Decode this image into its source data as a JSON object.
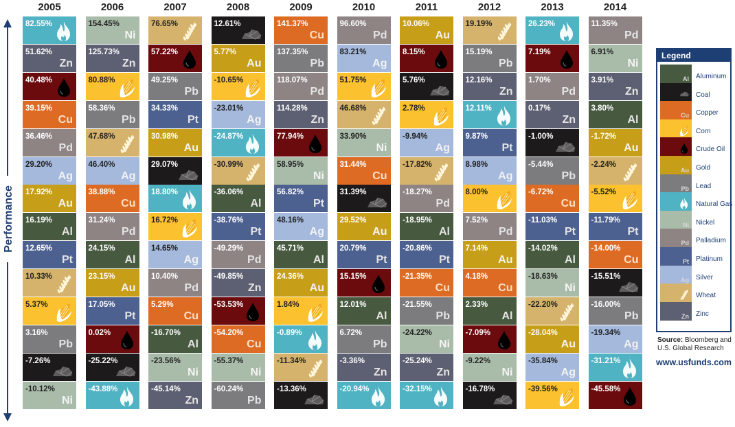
{
  "y_axis_label": "Performance",
  "legend": {
    "title": "Legend",
    "items": [
      {
        "name": "Aluminum",
        "sym": "Al"
      },
      {
        "name": "Coal",
        "sym": ""
      },
      {
        "name": "Copper",
        "sym": "Cu"
      },
      {
        "name": "Corn",
        "sym": ""
      },
      {
        "name": "Crude Oil",
        "sym": ""
      },
      {
        "name": "Gold",
        "sym": "Au"
      },
      {
        "name": "Lead",
        "sym": "Pb"
      },
      {
        "name": "Natural Gas",
        "sym": ""
      },
      {
        "name": "Nickel",
        "sym": "Ni"
      },
      {
        "name": "Palladium",
        "sym": "Pd"
      },
      {
        "name": "Platinum",
        "sym": "Pt"
      },
      {
        "name": "Silver",
        "sym": "Ag"
      },
      {
        "name": "Wheat",
        "sym": ""
      },
      {
        "name": "Zinc",
        "sym": "Zn"
      }
    ]
  },
  "source": {
    "label": "Source:",
    "text": "Bloomberg and U.S. Global Research"
  },
  "website": "www.usfunds.com",
  "colors": {
    "Al": "#475a3f",
    "Coal": "#1c1a1b",
    "Cu": "#de6b24",
    "Corn": "#fcc12e",
    "Oil": "#6b0b0d",
    "Au": "#c79e17",
    "Pb": "#7c7c7e",
    "Gas": "#4fb3c3",
    "Ni": "#a9bca9",
    "Pd": "#8e8484",
    "Pt": "#4d6191",
    "Ag": "#a4b9dc",
    "Wheat": "#d6b36c",
    "Zn": "#5d6072",
    "axis": "#1e3f73"
  },
  "chart_data": {
    "type": "table",
    "title": "",
    "ylabel": "Performance",
    "years": [
      "2005",
      "2006",
      "2007",
      "2008",
      "2009",
      "2010",
      "2011",
      "2012",
      "2013",
      "2014"
    ],
    "columns": [
      [
        [
          "82.55%",
          "Gas"
        ],
        [
          "51.62%",
          "Zn"
        ],
        [
          "40.48%",
          "Oil"
        ],
        [
          "39.15%",
          "Cu"
        ],
        [
          "36.46%",
          "Pd"
        ],
        [
          "29.20%",
          "Ag"
        ],
        [
          "17.92%",
          "Au"
        ],
        [
          "16.19%",
          "Al"
        ],
        [
          "12.65%",
          "Pt"
        ],
        [
          "10.33%",
          "Wheat"
        ],
        [
          "5.37%",
          "Corn"
        ],
        [
          "3.16%",
          "Pb"
        ],
        [
          "-7.26%",
          "Coal"
        ],
        [
          "-10.12%",
          "Ni"
        ]
      ],
      [
        [
          "154.45%",
          "Ni"
        ],
        [
          "125.73%",
          "Zn"
        ],
        [
          "80.88%",
          "Corn"
        ],
        [
          "58.36%",
          "Pb"
        ],
        [
          "47.68%",
          "Wheat"
        ],
        [
          "46.40%",
          "Ag"
        ],
        [
          "38.88%",
          "Cu"
        ],
        [
          "31.24%",
          "Pd"
        ],
        [
          "24.15%",
          "Al"
        ],
        [
          "23.15%",
          "Au"
        ],
        [
          "17.05%",
          "Pt"
        ],
        [
          "0.02%",
          "Oil"
        ],
        [
          "-25.22%",
          "Coal"
        ],
        [
          "-43.88%",
          "Gas"
        ]
      ],
      [
        [
          "76.65%",
          "Wheat"
        ],
        [
          "57.22%",
          "Oil"
        ],
        [
          "49.25%",
          "Pb"
        ],
        [
          "34.33%",
          "Pt"
        ],
        [
          "30.98%",
          "Au"
        ],
        [
          "29.07%",
          "Coal"
        ],
        [
          "18.80%",
          "Gas"
        ],
        [
          "16.72%",
          "Corn"
        ],
        [
          "14.65%",
          "Ag"
        ],
        [
          "10.40%",
          "Pd"
        ],
        [
          "5.29%",
          "Cu"
        ],
        [
          "-16.70%",
          "Al"
        ],
        [
          "-23.56%",
          "Ni"
        ],
        [
          "-45.14%",
          "Zn"
        ]
      ],
      [
        [
          "12.61%",
          "Coal"
        ],
        [
          "5.77%",
          "Au"
        ],
        [
          "-10.65%",
          "Corn"
        ],
        [
          "-23.01%",
          "Ag"
        ],
        [
          "-24.87%",
          "Gas"
        ],
        [
          "-30.99%",
          "Wheat"
        ],
        [
          "-36.06%",
          "Al"
        ],
        [
          "-38.76%",
          "Pt"
        ],
        [
          "-49.29%",
          "Pd"
        ],
        [
          "-49.85%",
          "Zn"
        ],
        [
          "-53.53%",
          "Oil"
        ],
        [
          "-54.20%",
          "Cu"
        ],
        [
          "-55.37%",
          "Ni"
        ],
        [
          "-60.24%",
          "Pb"
        ]
      ],
      [
        [
          "141.37%",
          "Cu"
        ],
        [
          "137.35%",
          "Pb"
        ],
        [
          "118.07%",
          "Pd"
        ],
        [
          "114.28%",
          "Zn"
        ],
        [
          "77.94%",
          "Oil"
        ],
        [
          "58.95%",
          "Ni"
        ],
        [
          "56.82%",
          "Pt"
        ],
        [
          "48.16%",
          "Ag"
        ],
        [
          "45.71%",
          "Al"
        ],
        [
          "24.36%",
          "Au"
        ],
        [
          "1.84%",
          "Corn"
        ],
        [
          "-0.89%",
          "Gas"
        ],
        [
          "-11.34%",
          "Wheat"
        ],
        [
          "-13.36%",
          "Coal"
        ]
      ],
      [
        [
          "96.60%",
          "Pd"
        ],
        [
          "83.21%",
          "Ag"
        ],
        [
          "51.75%",
          "Corn"
        ],
        [
          "46.68%",
          "Wheat"
        ],
        [
          "33.90%",
          "Ni"
        ],
        [
          "31.44%",
          "Cu"
        ],
        [
          "31.39%",
          "Coal"
        ],
        [
          "29.52%",
          "Au"
        ],
        [
          "20.79%",
          "Pt"
        ],
        [
          "15.15%",
          "Oil"
        ],
        [
          "12.01%",
          "Al"
        ],
        [
          "6.72%",
          "Pb"
        ],
        [
          "-3.36%",
          "Zn"
        ],
        [
          "-20.94%",
          "Gas"
        ]
      ],
      [
        [
          "10.06%",
          "Au"
        ],
        [
          "8.15%",
          "Oil"
        ],
        [
          "5.76%",
          "Coal"
        ],
        [
          "2.78%",
          "Corn"
        ],
        [
          "-9.94%",
          "Ag"
        ],
        [
          "-17.82%",
          "Wheat"
        ],
        [
          "-18.27%",
          "Pd"
        ],
        [
          "-18.95%",
          "Al"
        ],
        [
          "-20.86%",
          "Pt"
        ],
        [
          "-21.35%",
          "Cu"
        ],
        [
          "-21.55%",
          "Pb"
        ],
        [
          "-24.22%",
          "Ni"
        ],
        [
          "-25.24%",
          "Zn"
        ],
        [
          "-32.15%",
          "Gas"
        ]
      ],
      [
        [
          "19.19%",
          "Wheat"
        ],
        [
          "15.19%",
          "Pb"
        ],
        [
          "12.16%",
          "Zn"
        ],
        [
          "12.11%",
          "Gas"
        ],
        [
          "9.87%",
          "Pt"
        ],
        [
          "8.98%",
          "Ag"
        ],
        [
          "8.00%",
          "Corn"
        ],
        [
          "7.52%",
          "Pd"
        ],
        [
          "7.14%",
          "Au"
        ],
        [
          "4.18%",
          "Cu"
        ],
        [
          "2.33%",
          "Al"
        ],
        [
          "-7.09%",
          "Oil"
        ],
        [
          "-9.22%",
          "Ni"
        ],
        [
          "-16.78%",
          "Coal"
        ]
      ],
      [
        [
          "26.23%",
          "Gas"
        ],
        [
          "7.19%",
          "Oil"
        ],
        [
          "1.70%",
          "Pd"
        ],
        [
          "0.17%",
          "Zn"
        ],
        [
          "-1.00%",
          "Coal"
        ],
        [
          "-5.44%",
          "Pb"
        ],
        [
          "-6.72%",
          "Cu"
        ],
        [
          "-11.03%",
          "Pt"
        ],
        [
          "-14.02%",
          "Al"
        ],
        [
          "-18.63%",
          "Ni"
        ],
        [
          "-22.20%",
          "Wheat"
        ],
        [
          "-28.04%",
          "Au"
        ],
        [
          "-35.84%",
          "Ag"
        ],
        [
          "-39.56%",
          "Corn"
        ]
      ],
      [
        [
          "11.35%",
          "Pd"
        ],
        [
          "6.91%",
          "Ni"
        ],
        [
          "3.91%",
          "Zn"
        ],
        [
          "3.80%",
          "Al"
        ],
        [
          "-1.72%",
          "Au"
        ],
        [
          "-2.24%",
          "Wheat"
        ],
        [
          "-5.52%",
          "Corn"
        ],
        [
          "-11.79%",
          "Pt"
        ],
        [
          "-14.00%",
          "Cu"
        ],
        [
          "-15.51%",
          "Coal"
        ],
        [
          "-16.00%",
          "Pb"
        ],
        [
          "-19.34%",
          "Ag"
        ],
        [
          "-31.21%",
          "Gas"
        ],
        [
          "-45.58%",
          "Oil"
        ]
      ]
    ]
  }
}
